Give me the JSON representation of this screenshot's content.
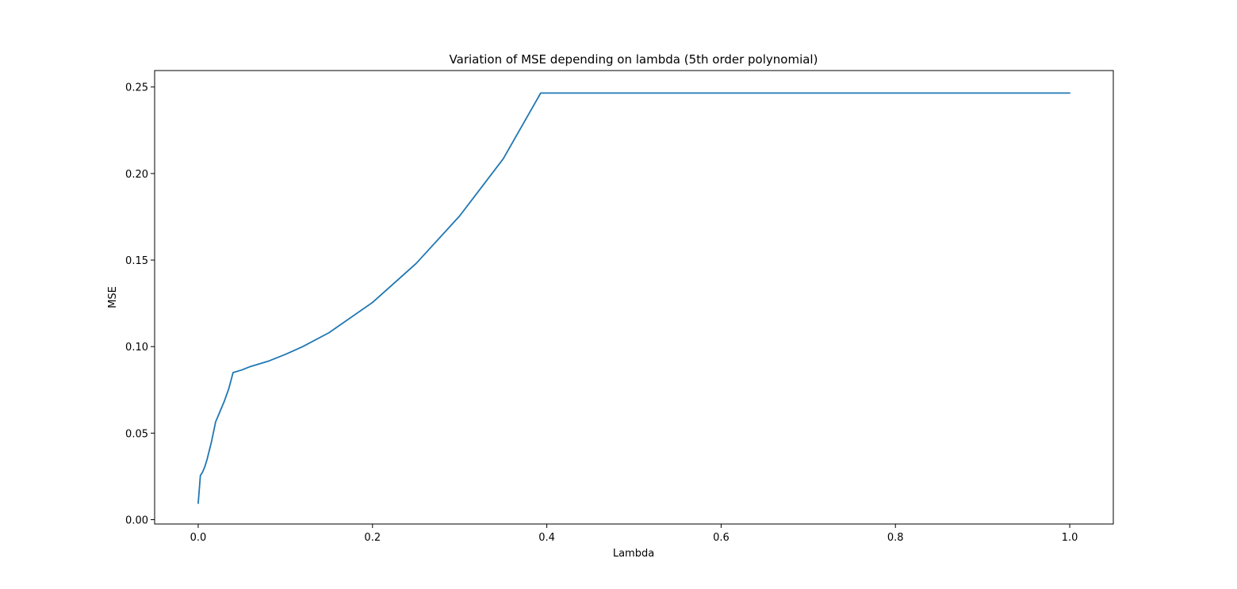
{
  "chart_data": {
    "type": "line",
    "title": "Variation of MSE depending on lambda (5th order polynomial)",
    "xlabel": "Lambda",
    "ylabel": "MSE",
    "xlim": [
      -0.05,
      1.05
    ],
    "ylim": [
      -0.0025,
      0.2595
    ],
    "xticks": [
      0.0,
      0.2,
      0.4,
      0.6,
      0.8,
      1.0
    ],
    "xtick_labels": [
      "0.0",
      "0.2",
      "0.4",
      "0.6",
      "0.8",
      "1.0"
    ],
    "yticks": [
      0.0,
      0.05,
      0.1,
      0.15,
      0.2,
      0.25
    ],
    "ytick_labels": [
      "0.00",
      "0.05",
      "0.10",
      "0.15",
      "0.20",
      "0.25"
    ],
    "grid": false,
    "legend": false,
    "line_color": "#1f77b4",
    "series": [
      {
        "x": [
          0.0,
          0.0025,
          0.005,
          0.0075,
          0.01,
          0.015,
          0.02,
          0.025,
          0.03,
          0.035,
          0.04,
          0.05,
          0.06,
          0.08,
          0.1,
          0.12,
          0.15,
          0.2,
          0.25,
          0.3,
          0.35,
          0.393,
          0.45,
          0.5,
          0.6,
          0.7,
          0.8,
          0.9,
          1.0
        ],
        "y": [
          0.0095,
          0.0255,
          0.0275,
          0.0305,
          0.0345,
          0.0445,
          0.0565,
          0.0625,
          0.0685,
          0.0755,
          0.085,
          0.0865,
          0.0885,
          0.0915,
          0.0955,
          0.1,
          0.108,
          0.1255,
          0.148,
          0.1755,
          0.2085,
          0.2465,
          0.2465,
          0.2465,
          0.2465,
          0.2465,
          0.2465,
          0.2465,
          0.2465
        ]
      }
    ]
  }
}
